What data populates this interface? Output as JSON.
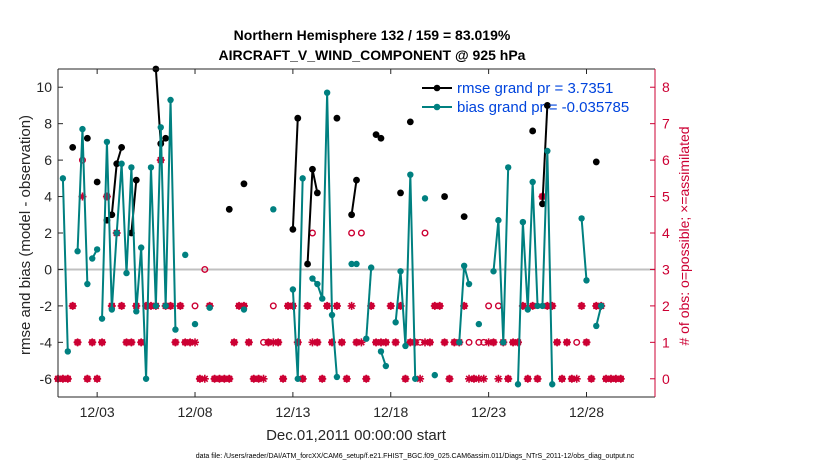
{
  "chart_data": {
    "type": "line",
    "title": "Northern Hemisphere 132 / 159 = 83.019%",
    "subtitle": "AIRCRAFT_V_WIND_COMPONENT @ 925 hPa",
    "xlabel": "Dec.01,2011 00:00:00 start",
    "ylabel": "rmse and bias (model - observation)",
    "y2label": "# of obs: o=possible; ×=assimilated",
    "footnote": "data file: /Users/raeder/DAI/ATM_forcXX/CAM6_setup/f.e21.FHIST_BGC.f09_025.CAM6assim.011/Diags_NTrS_2011-12/obs_diag_output.nc",
    "xlim": [
      1.0,
      31.5
    ],
    "ylim": [
      -7,
      11
    ],
    "y2lim": [
      -0.5,
      8.5
    ],
    "x_ticks": [
      3,
      8,
      13,
      18,
      23,
      28
    ],
    "x_tick_labels": [
      "12/03",
      "12/08",
      "12/13",
      "12/18",
      "12/23",
      "12/28"
    ],
    "y_ticks": [
      -6,
      -4,
      -2,
      0,
      2,
      4,
      6,
      8,
      10
    ],
    "y_tick_labels": [
      "-6",
      "-4",
      "-2",
      "0",
      "2",
      "4",
      "6",
      "8",
      "10"
    ],
    "y2_ticks": [
      0,
      1,
      2,
      3,
      4,
      5,
      6,
      7,
      8
    ],
    "y2_tick_labels": [
      "0",
      "1",
      "2",
      "3",
      "4",
      "5",
      "6",
      "7",
      "8"
    ],
    "legend": {
      "location": "top-right",
      "entries": [
        "rmse grand pr = 3.7351",
        "bias grand pr = -0.035785"
      ]
    },
    "colors": {
      "rmse": "#000000",
      "bias": "#008080",
      "obs": "#cc0033",
      "zero_line": "#c0c0c0",
      "legend_text": "#0044dd"
    },
    "series": [
      {
        "name": "rmse",
        "segments": [
          [
            [
              1.75,
              6.7
            ]
          ],
          [
            [
              2.5,
              7.2
            ]
          ],
          [
            [
              3.0,
              4.8
            ]
          ],
          [
            [
              3.5,
              2.7
            ],
            [
              3.75,
              3.0
            ],
            [
              4.0,
              5.8
            ],
            [
              4.25,
              6.7
            ]
          ],
          [
            [
              4.75,
              2.0
            ],
            [
              5.0,
              4.9
            ]
          ],
          [
            [
              6.0,
              11.0
            ],
            [
              6.25,
              6.9
            ],
            [
              6.5,
              7.2
            ]
          ],
          [
            [
              9.75,
              3.3
            ]
          ],
          [
            [
              10.5,
              4.7
            ]
          ],
          [
            [
              13.0,
              2.2
            ],
            [
              13.25,
              8.3
            ]
          ],
          [
            [
              13.75,
              0.3
            ],
            [
              14.0,
              5.5
            ],
            [
              14.25,
              4.2
            ]
          ],
          [
            [
              15.25,
              8.3
            ]
          ],
          [
            [
              16.0,
              3.0
            ],
            [
              16.25,
              4.9
            ]
          ],
          [
            [
              17.25,
              7.4
            ],
            [
              17.5,
              7.2
            ]
          ],
          [
            [
              18.5,
              4.2
            ]
          ],
          [
            [
              19.0,
              8.1
            ]
          ],
          [
            [
              20.75,
              4.0
            ]
          ],
          [
            [
              21.75,
              2.9
            ]
          ],
          [
            [
              25.25,
              7.6
            ]
          ],
          [
            [
              25.75,
              3.6
            ],
            [
              26.0,
              9.0
            ]
          ],
          [
            [
              28.5,
              5.9
            ]
          ]
        ]
      },
      {
        "name": "bias",
        "segments": [
          [
            [
              1.25,
              5.0
            ],
            [
              1.5,
              -4.5
            ]
          ],
          [
            [
              2.0,
              1.0
            ],
            [
              2.25,
              7.7
            ],
            [
              2.5,
              -0.8
            ]
          ],
          [
            [
              2.75,
              0.6
            ],
            [
              3.0,
              1.1
            ]
          ],
          [
            [
              3.25,
              -2.7
            ],
            [
              3.5,
              7.0
            ],
            [
              3.75,
              -2.2
            ],
            [
              4.0,
              2.0
            ],
            [
              4.25,
              5.8
            ],
            [
              4.5,
              -0.2
            ],
            [
              4.75,
              5.6
            ],
            [
              5.0,
              -2.3
            ],
            [
              5.25,
              1.2
            ],
            [
              5.5,
              -6.0
            ],
            [
              5.75,
              5.6
            ],
            [
              6.0,
              -2.0
            ],
            [
              6.25,
              7.8
            ],
            [
              6.5,
              -2.0
            ],
            [
              6.75,
              9.3
            ],
            [
              7.0,
              -3.3
            ]
          ],
          [
            [
              7.5,
              0.8
            ]
          ],
          [
            [
              8.0,
              -3.0
            ]
          ],
          [
            [
              8.75,
              -2.1
            ]
          ],
          [
            [
              10.5,
              -2.2
            ]
          ],
          [
            [
              12.0,
              3.3
            ]
          ],
          [
            [
              13.0,
              -1.1
            ],
            [
              13.25,
              -6.0
            ],
            [
              13.5,
              5.0
            ]
          ],
          [
            [
              14.0,
              -0.5
            ],
            [
              14.25,
              -0.8
            ],
            [
              14.5,
              -1.6
            ],
            [
              14.75,
              9.7
            ],
            [
              15.0,
              -2.5
            ],
            [
              15.25,
              -5.9
            ]
          ],
          [
            [
              16.0,
              0.3
            ],
            [
              16.25,
              0.3
            ]
          ],
          [
            [
              16.75,
              -3.8
            ],
            [
              17.0,
              0.1
            ]
          ],
          [
            [
              17.5,
              -4.5
            ],
            [
              17.75,
              -5.3
            ]
          ],
          [
            [
              18.25,
              -2.9
            ],
            [
              18.5,
              -0.1
            ],
            [
              18.75,
              -4.2
            ],
            [
              19.0,
              5.2
            ],
            [
              19.25,
              -6.0
            ]
          ],
          [
            [
              19.75,
              3.9
            ]
          ],
          [
            [
              20.25,
              -5.8
            ]
          ],
          [
            [
              21.5,
              -4.0
            ],
            [
              21.75,
              0.2
            ],
            [
              22.0,
              -0.8
            ]
          ],
          [
            [
              22.5,
              -3.0
            ]
          ],
          [
            [
              23.25,
              -0.1
            ],
            [
              23.5,
              2.7
            ],
            [
              23.75,
              -4.0
            ],
            [
              24.0,
              5.6
            ]
          ],
          [
            [
              24.5,
              -6.3
            ],
            [
              24.75,
              2.6
            ],
            [
              25.0,
              -2.2
            ],
            [
              25.25,
              4.8
            ],
            [
              25.5,
              -2.0
            ]
          ],
          [
            [
              25.75,
              -2.0
            ],
            [
              26.0,
              6.5
            ],
            [
              26.25,
              -6.3
            ]
          ],
          [
            [
              27.75,
              2.8
            ],
            [
              28.0,
              -0.6
            ]
          ],
          [
            [
              28.5,
              -3.1
            ],
            [
              28.75,
              -2.0
            ]
          ]
        ]
      }
    ],
    "obs_possible": [
      [
        1.0,
        0
      ],
      [
        1.25,
        0
      ],
      [
        1.5,
        0
      ],
      [
        1.75,
        2
      ],
      [
        2.0,
        1
      ],
      [
        2.25,
        6
      ],
      [
        2.5,
        0
      ],
      [
        2.75,
        1
      ],
      [
        3.0,
        0
      ],
      [
        3.25,
        1
      ],
      [
        3.5,
        5
      ],
      [
        3.75,
        2
      ],
      [
        4.0,
        4
      ],
      [
        4.25,
        2
      ],
      [
        4.5,
        1
      ],
      [
        4.75,
        1
      ],
      [
        5.0,
        2
      ],
      [
        5.25,
        1
      ],
      [
        5.5,
        2
      ],
      [
        5.75,
        2
      ],
      [
        6.0,
        2
      ],
      [
        6.25,
        6
      ],
      [
        6.5,
        2
      ],
      [
        6.75,
        2
      ],
      [
        7.0,
        1
      ],
      [
        7.25,
        2
      ],
      [
        7.5,
        1
      ],
      [
        7.75,
        1
      ],
      [
        8.0,
        2
      ],
      [
        8.25,
        0
      ],
      [
        8.5,
        3
      ],
      [
        8.75,
        2
      ],
      [
        9.0,
        0
      ],
      [
        9.25,
        0
      ],
      [
        9.5,
        0
      ],
      [
        9.75,
        0
      ],
      [
        10.0,
        1
      ],
      [
        10.25,
        2
      ],
      [
        10.5,
        2
      ],
      [
        10.75,
        1
      ],
      [
        11.0,
        0
      ],
      [
        11.25,
        0
      ],
      [
        11.5,
        1
      ],
      [
        11.75,
        1
      ],
      [
        12.0,
        2
      ],
      [
        12.25,
        1
      ],
      [
        12.5,
        0
      ],
      [
        12.75,
        2
      ],
      [
        13.0,
        2
      ],
      [
        13.25,
        1
      ],
      [
        13.5,
        0
      ],
      [
        13.75,
        2
      ],
      [
        14.0,
        4
      ],
      [
        14.25,
        1
      ],
      [
        14.5,
        0
      ],
      [
        14.75,
        2
      ],
      [
        15.0,
        1
      ],
      [
        15.25,
        2
      ],
      [
        15.5,
        1
      ],
      [
        15.75,
        0
      ],
      [
        16.0,
        4
      ],
      [
        16.25,
        1
      ],
      [
        16.5,
        4
      ],
      [
        16.75,
        0
      ],
      [
        17.0,
        2
      ],
      [
        17.25,
        1
      ],
      [
        17.5,
        1
      ],
      [
        17.75,
        1
      ],
      [
        18.0,
        2
      ],
      [
        18.25,
        1
      ],
      [
        18.5,
        2
      ],
      [
        18.75,
        0
      ],
      [
        19.0,
        1
      ],
      [
        19.25,
        1
      ],
      [
        19.5,
        1
      ],
      [
        19.75,
        4
      ],
      [
        20.0,
        1
      ],
      [
        20.25,
        2
      ],
      [
        20.5,
        2
      ],
      [
        20.75,
        1
      ],
      [
        21.0,
        0
      ],
      [
        21.25,
        1
      ],
      [
        21.5,
        1
      ],
      [
        21.75,
        2
      ],
      [
        22.0,
        1
      ],
      [
        22.25,
        0
      ],
      [
        22.5,
        1
      ],
      [
        22.75,
        1
      ],
      [
        23.0,
        2
      ],
      [
        23.25,
        1
      ],
      [
        23.5,
        2
      ],
      [
        23.75,
        1
      ],
      [
        24.0,
        0
      ],
      [
        24.25,
        1
      ],
      [
        24.5,
        1
      ],
      [
        24.75,
        2
      ],
      [
        25.0,
        0
      ],
      [
        25.25,
        2
      ],
      [
        25.5,
        0
      ],
      [
        25.75,
        5
      ],
      [
        26.0,
        2
      ],
      [
        26.25,
        2
      ],
      [
        26.5,
        1
      ],
      [
        26.75,
        0
      ],
      [
        27.0,
        1
      ],
      [
        27.25,
        0
      ],
      [
        27.5,
        1
      ],
      [
        27.75,
        2
      ],
      [
        28.0,
        1
      ],
      [
        28.25,
        0
      ],
      [
        28.5,
        2
      ],
      [
        28.75,
        2
      ],
      [
        29.0,
        0
      ],
      [
        29.25,
        0
      ],
      [
        29.5,
        0
      ],
      [
        29.75,
        0
      ]
    ],
    "obs_assimilated": [
      [
        1.0,
        0
      ],
      [
        1.25,
        0
      ],
      [
        1.5,
        0
      ],
      [
        1.75,
        2
      ],
      [
        2.0,
        1
      ],
      [
        2.25,
        5
      ],
      [
        2.5,
        0
      ],
      [
        2.75,
        1
      ],
      [
        3.0,
        0
      ],
      [
        3.25,
        1
      ],
      [
        3.5,
        5
      ],
      [
        3.75,
        2
      ],
      [
        4.0,
        4
      ],
      [
        4.25,
        2
      ],
      [
        4.5,
        1
      ],
      [
        4.75,
        1
      ],
      [
        5.0,
        2
      ],
      [
        5.25,
        1
      ],
      [
        5.5,
        2
      ],
      [
        5.75,
        2
      ],
      [
        6.0,
        2
      ],
      [
        6.25,
        6
      ],
      [
        6.5,
        2
      ],
      [
        6.75,
        2
      ],
      [
        7.0,
        1
      ],
      [
        7.25,
        2
      ],
      [
        7.5,
        1
      ],
      [
        7.75,
        1
      ],
      [
        8.0,
        1
      ],
      [
        8.25,
        0
      ],
      [
        8.5,
        0
      ],
      [
        8.75,
        2
      ],
      [
        9.0,
        0
      ],
      [
        9.25,
        0
      ],
      [
        9.5,
        0
      ],
      [
        9.75,
        0
      ],
      [
        10.0,
        1
      ],
      [
        10.25,
        2
      ],
      [
        10.5,
        2
      ],
      [
        10.75,
        1
      ],
      [
        11.0,
        0
      ],
      [
        11.25,
        0
      ],
      [
        11.5,
        0
      ],
      [
        11.75,
        1
      ],
      [
        12.0,
        1
      ],
      [
        12.25,
        1
      ],
      [
        12.5,
        0
      ],
      [
        12.75,
        2
      ],
      [
        13.0,
        2
      ],
      [
        13.25,
        1
      ],
      [
        13.5,
        0
      ],
      [
        13.75,
        2
      ],
      [
        14.0,
        1
      ],
      [
        14.25,
        1
      ],
      [
        14.5,
        0
      ],
      [
        14.75,
        2
      ],
      [
        15.0,
        1
      ],
      [
        15.25,
        2
      ],
      [
        15.5,
        1
      ],
      [
        15.75,
        0
      ],
      [
        16.0,
        2
      ],
      [
        16.25,
        1
      ],
      [
        16.5,
        1
      ],
      [
        16.75,
        0
      ],
      [
        17.0,
        2
      ],
      [
        17.25,
        1
      ],
      [
        17.5,
        1
      ],
      [
        17.75,
        1
      ],
      [
        18.0,
        2
      ],
      [
        18.25,
        1
      ],
      [
        18.5,
        2
      ],
      [
        18.75,
        0
      ],
      [
        19.0,
        1
      ],
      [
        19.25,
        1
      ],
      [
        19.5,
        0
      ],
      [
        19.75,
        1
      ],
      [
        20.0,
        1
      ],
      [
        20.25,
        2
      ],
      [
        20.5,
        2
      ],
      [
        20.75,
        1
      ],
      [
        21.0,
        0
      ],
      [
        21.25,
        1
      ],
      [
        21.5,
        1
      ],
      [
        21.75,
        2
      ],
      [
        22.0,
        0
      ],
      [
        22.25,
        0
      ],
      [
        22.5,
        0
      ],
      [
        22.75,
        0
      ],
      [
        23.0,
        1
      ],
      [
        23.25,
        1
      ],
      [
        23.5,
        0
      ],
      [
        23.75,
        1
      ],
      [
        24.0,
        0
      ],
      [
        24.25,
        1
      ],
      [
        24.5,
        1
      ],
      [
        24.75,
        2
      ],
      [
        25.0,
        0
      ],
      [
        25.25,
        2
      ],
      [
        25.5,
        0
      ],
      [
        25.75,
        5
      ],
      [
        26.0,
        2
      ],
      [
        26.25,
        2
      ],
      [
        26.5,
        1
      ],
      [
        26.75,
        0
      ],
      [
        27.0,
        1
      ],
      [
        27.25,
        0
      ],
      [
        27.5,
        0
      ],
      [
        27.75,
        2
      ],
      [
        28.0,
        1
      ],
      [
        28.25,
        0
      ],
      [
        28.5,
        2
      ],
      [
        28.75,
        2
      ],
      [
        29.0,
        0
      ],
      [
        29.25,
        0
      ],
      [
        29.5,
        0
      ],
      [
        29.75,
        0
      ]
    ]
  }
}
